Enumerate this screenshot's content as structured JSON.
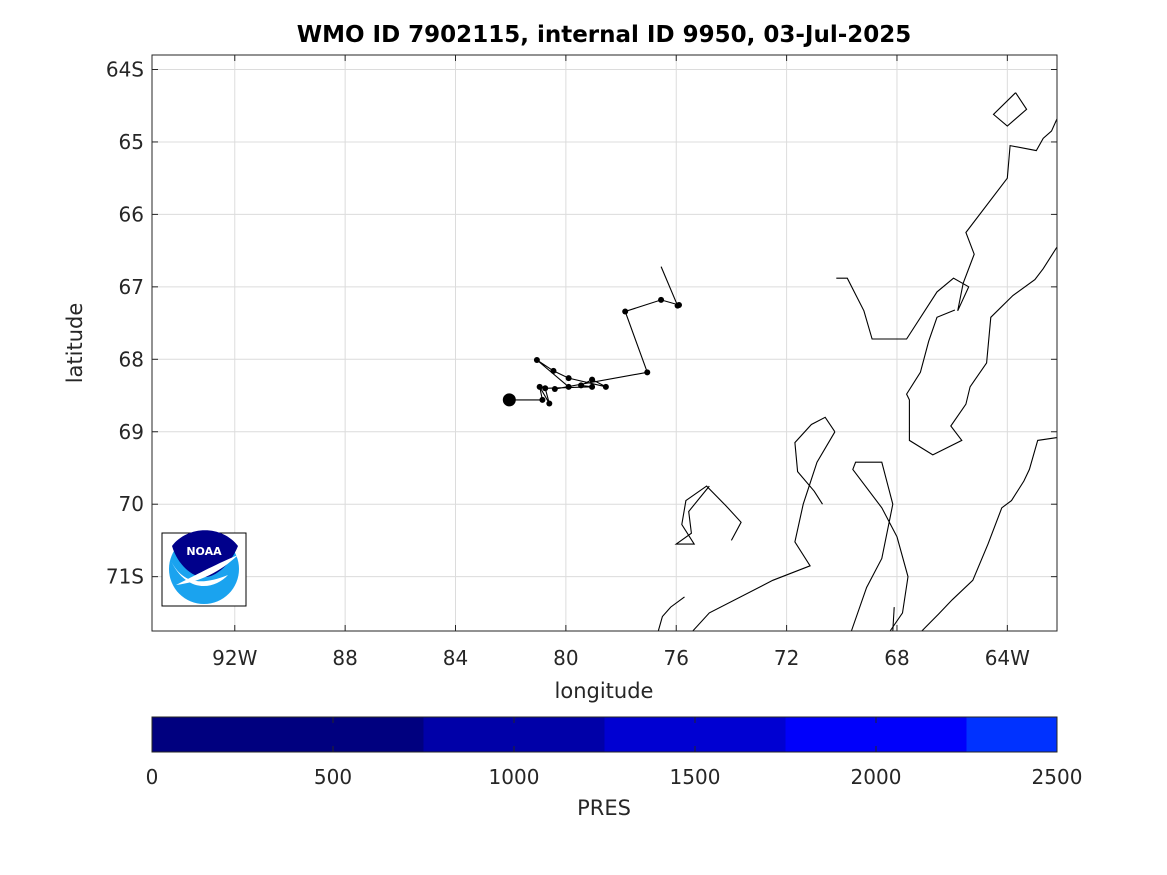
{
  "chart_data": {
    "type": "map",
    "title": "WMO ID 7902115, internal ID 9950, 03-Jul-2025",
    "xlabel": "longitude",
    "ylabel": "latitude",
    "xlim": [
      -95.0,
      -62.2
    ],
    "ylim": [
      -71.75,
      -63.8
    ],
    "x_ticks": [
      {
        "value": -92,
        "label": "92W"
      },
      {
        "value": -88,
        "label": "88"
      },
      {
        "value": -84,
        "label": "84"
      },
      {
        "value": -80,
        "label": "80"
      },
      {
        "value": -76,
        "label": "76"
      },
      {
        "value": -72,
        "label": "72"
      },
      {
        "value": -68,
        "label": "68"
      },
      {
        "value": -64,
        "label": "64W"
      }
    ],
    "y_ticks": [
      {
        "value": -64,
        "label": "64S"
      },
      {
        "value": -65,
        "label": "65"
      },
      {
        "value": -66,
        "label": "66"
      },
      {
        "value": -67,
        "label": "67"
      },
      {
        "value": -68,
        "label": "68"
      },
      {
        "value": -69,
        "label": "69"
      },
      {
        "value": -70,
        "label": "70"
      },
      {
        "value": -71,
        "label": "71S"
      }
    ],
    "grid": true,
    "trajectory": {
      "points": [
        [
          -82.05,
          -68.56
        ],
        [
          -80.85,
          -68.56
        ],
        [
          -80.95,
          -68.38
        ],
        [
          -80.6,
          -68.61
        ],
        [
          -80.75,
          -68.4
        ],
        [
          -79.05,
          -68.38
        ],
        [
          -79.45,
          -68.36
        ],
        [
          -79.05,
          -68.28
        ],
        [
          -78.55,
          -68.38
        ],
        [
          -79.9,
          -68.26
        ],
        [
          -80.45,
          -68.16
        ],
        [
          -81.05,
          -68.01
        ],
        [
          -79.9,
          -68.38
        ],
        [
          -80.4,
          -68.41
        ],
        [
          -77.05,
          -68.18
        ],
        [
          -77.85,
          -67.34
        ],
        [
          -76.55,
          -67.18
        ],
        [
          -75.9,
          -67.25
        ],
        [
          -75.95,
          -67.26
        ]
      ],
      "tail": [
        [
          -75.95,
          -67.26
        ],
        [
          -76.55,
          -66.72
        ]
      ],
      "start_marker": [
        -82.05,
        -68.56
      ],
      "marker_color": "#000000",
      "line_color": "#000000"
    },
    "coastlines": [
      [
        [
          -63.7,
          -64.32
        ],
        [
          -64.5,
          -64.62
        ],
        [
          -64.0,
          -64.78
        ],
        [
          -63.3,
          -64.55
        ],
        [
          -63.7,
          -64.32
        ]
      ],
      [
        [
          -62.2,
          -64.68
        ],
        [
          -62.4,
          -64.85
        ],
        [
          -62.7,
          -64.95
        ],
        [
          -62.95,
          -65.12
        ],
        [
          -63.9,
          -65.05
        ],
        [
          -64.0,
          -65.5
        ],
        [
          -65.5,
          -66.25
        ],
        [
          -65.2,
          -66.55
        ],
        [
          -65.6,
          -66.95
        ],
        [
          -65.8,
          -67.33
        ],
        [
          -65.4,
          -67.0
        ],
        [
          -65.95,
          -66.88
        ],
        [
          -66.55,
          -67.07
        ],
        [
          -67.65,
          -67.72
        ],
        [
          -68.9,
          -67.72
        ],
        [
          -69.2,
          -67.33
        ],
        [
          -69.8,
          -66.88
        ],
        [
          -70.2,
          -66.88
        ]
      ],
      [
        [
          -62.2,
          -66.45
        ],
        [
          -62.7,
          -66.75
        ],
        [
          -63.0,
          -66.9
        ],
        [
          -63.8,
          -67.12
        ],
        [
          -64.6,
          -67.42
        ],
        [
          -64.75,
          -68.05
        ],
        [
          -65.35,
          -68.38
        ],
        [
          -65.5,
          -68.62
        ],
        [
          -66.05,
          -68.92
        ],
        [
          -65.65,
          -69.12
        ],
        [
          -66.7,
          -69.32
        ],
        [
          -67.55,
          -69.12
        ],
        [
          -67.55,
          -68.56
        ],
        [
          -67.65,
          -68.48
        ],
        [
          -67.15,
          -68.18
        ],
        [
          -66.85,
          -67.75
        ],
        [
          -66.55,
          -67.42
        ],
        [
          -65.9,
          -67.32
        ]
      ],
      [
        [
          -62.2,
          -69.08
        ],
        [
          -62.9,
          -69.12
        ],
        [
          -63.2,
          -69.52
        ],
        [
          -63.4,
          -69.68
        ],
        [
          -63.85,
          -69.95
        ],
        [
          -64.2,
          -70.05
        ],
        [
          -64.7,
          -70.55
        ],
        [
          -65.25,
          -71.05
        ],
        [
          -66.0,
          -71.32
        ],
        [
          -66.5,
          -71.52
        ],
        [
          -67.1,
          -71.75
        ]
      ],
      [
        [
          -68.1,
          -71.42
        ],
        [
          -68.15,
          -71.75
        ]
      ],
      [
        [
          -68.25,
          -71.75
        ],
        [
          -67.8,
          -71.5
        ],
        [
          -67.6,
          -71.0
        ],
        [
          -68.0,
          -70.45
        ],
        [
          -68.55,
          -70.05
        ],
        [
          -69.6,
          -69.52
        ],
        [
          -69.5,
          -69.42
        ],
        [
          -68.55,
          -69.42
        ],
        [
          -68.15,
          -70.0
        ],
        [
          -68.55,
          -70.75
        ],
        [
          -69.1,
          -71.15
        ],
        [
          -69.65,
          -71.75
        ]
      ],
      [
        [
          -70.25,
          -69.0
        ],
        [
          -70.9,
          -69.42
        ],
        [
          -71.4,
          -70.0
        ],
        [
          -71.7,
          -70.52
        ],
        [
          -71.15,
          -70.85
        ],
        [
          -72.5,
          -71.05
        ],
        [
          -74.8,
          -71.5
        ],
        [
          -75.4,
          -71.75
        ],
        [
          -76.65,
          -71.75
        ],
        [
          -76.5,
          -71.55
        ],
        [
          -76.2,
          -71.42
        ],
        [
          -75.7,
          -71.28
        ]
      ],
      [
        [
          -70.25,
          -69.0
        ],
        [
          -70.6,
          -68.8
        ],
        [
          -71.1,
          -68.9
        ],
        [
          -71.7,
          -69.15
        ],
        [
          -71.6,
          -69.55
        ],
        [
          -71.0,
          -69.82
        ],
        [
          -70.7,
          -70.0
        ]
      ],
      [
        [
          -74.0,
          -70.5
        ],
        [
          -73.65,
          -70.25
        ],
        [
          -74.2,
          -70.02
        ],
        [
          -74.9,
          -69.75
        ],
        [
          -75.65,
          -69.95
        ],
        [
          -75.8,
          -70.28
        ],
        [
          -75.35,
          -70.55
        ],
        [
          -76.0,
          -70.55
        ],
        [
          -75.45,
          -70.4
        ],
        [
          -75.55,
          -70.1
        ],
        [
          -74.8,
          -69.75
        ]
      ]
    ],
    "logo": {
      "text": "NOAA"
    }
  },
  "colorbar": {
    "label": "PRES",
    "range": [
      0,
      2500
    ],
    "tick_values": [
      0,
      500,
      1000,
      1500,
      2000,
      2500
    ],
    "tick_labels": [
      "0",
      "500",
      "1000",
      "1500",
      "2000",
      "2500"
    ],
    "bands": [
      {
        "from": 0,
        "to": 750,
        "color": "#00007f"
      },
      {
        "from": 750,
        "to": 1250,
        "color": "#0000a8"
      },
      {
        "from": 1250,
        "to": 1750,
        "color": "#0000d2"
      },
      {
        "from": 1750,
        "to": 2250,
        "color": "#0000fb"
      },
      {
        "from": 2250,
        "to": 2500,
        "color": "#0032ff"
      }
    ]
  }
}
